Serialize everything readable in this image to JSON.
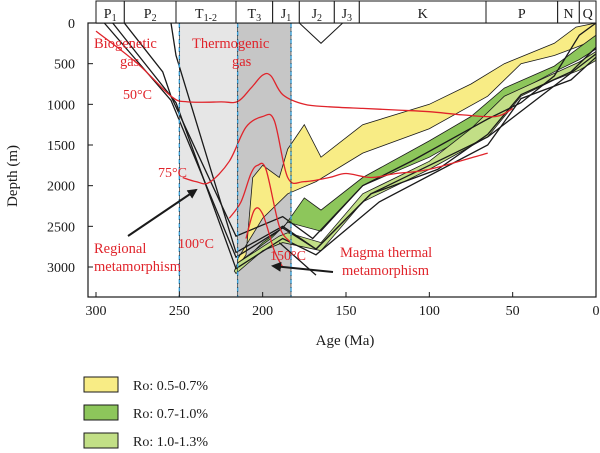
{
  "chart_data": {
    "type": "burial-history",
    "xlabel": "Age (Ma)",
    "ylabel": "Depth (m)",
    "x_ticks": [
      300,
      250,
      200,
      150,
      100,
      50,
      0
    ],
    "y_ticks": [
      0,
      500,
      1000,
      1500,
      2000,
      2500,
      3000
    ],
    "xlim": [
      310,
      0
    ],
    "ylim": [
      0,
      3300
    ],
    "periods": [
      {
        "label": "P",
        "sub": "1",
        "start": 300,
        "end": 283
      },
      {
        "label": "P",
        "sub": "2",
        "start": 283,
        "end": 252
      },
      {
        "label": "T",
        "sub": "1-2",
        "start": 252,
        "end": 216
      },
      {
        "label": "T",
        "sub": "3",
        "start": 216,
        "end": 194
      },
      {
        "label": "J",
        "sub": "1",
        "start": 194,
        "end": 178
      },
      {
        "label": "J",
        "sub": "2",
        "start": 178,
        "end": 157
      },
      {
        "label": "J",
        "sub": "3",
        "start": 157,
        "end": 142
      },
      {
        "label": "K",
        "sub": "",
        "start": 142,
        "end": 66
      },
      {
        "label": "P",
        "sub": "",
        "start": 66,
        "end": 23
      },
      {
        "label": "N",
        "sub": "",
        "start": 23,
        "end": 10
      },
      {
        "label": "Q",
        "sub": "",
        "start": 10,
        "end": 0
      }
    ],
    "bands": [
      {
        "start": 250,
        "end": 215,
        "color": "#e6e6e6"
      },
      {
        "start": 215,
        "end": 183,
        "color": "#c6c6c6"
      }
    ],
    "markers": [
      250,
      215,
      183
    ],
    "burial_curves": [
      [
        [
          300,
          0
        ],
        [
          283,
          0
        ],
        [
          260,
          600
        ],
        [
          255,
          900
        ],
        [
          216,
          2620
        ],
        [
          188,
          2380
        ],
        [
          170,
          2650
        ],
        [
          140,
          2000
        ],
        [
          110,
          1690
        ],
        [
          65,
          1180
        ],
        [
          45,
          980
        ],
        [
          25,
          650
        ],
        [
          10,
          150
        ],
        [
          0,
          0
        ]
      ],
      [
        [
          295,
          0
        ],
        [
          255,
          950
        ],
        [
          216,
          2880
        ],
        [
          188,
          2520
        ],
        [
          168,
          2780
        ],
        [
          135,
          2100
        ],
        [
          95,
          1800
        ],
        [
          65,
          1370
        ],
        [
          45,
          880
        ],
        [
          15,
          600
        ],
        [
          0,
          300
        ]
      ],
      [
        [
          290,
          0
        ],
        [
          252,
          980
        ],
        [
          216,
          3020
        ],
        [
          188,
          2650
        ],
        [
          168,
          2850
        ],
        [
          130,
          2200
        ],
        [
          65,
          1500
        ],
        [
          45,
          930
        ],
        [
          15,
          700
        ],
        [
          0,
          420
        ]
      ],
      [
        [
          255,
          0
        ],
        [
          252,
          400
        ],
        [
          216,
          2820
        ],
        [
          188,
          2500
        ],
        [
          168,
          2780
        ],
        [
          135,
          2100
        ],
        [
          65,
          1400
        ],
        [
          0,
          380
        ]
      ],
      [
        [
          168,
          3100
        ],
        [
          190,
          2700
        ]
      ]
    ],
    "maturity_zones": [
      {
        "label": "Ro: 0.5-0.7%",
        "color": "#f8ec85",
        "outline": [
          [
            215,
            3000
          ],
          [
            210,
            2850
          ],
          [
            206,
            1900
          ],
          [
            200,
            1750
          ],
          [
            190,
            1900
          ],
          [
            185,
            1550
          ],
          [
            180,
            1400
          ],
          [
            175,
            1250
          ],
          [
            165,
            1650
          ],
          [
            140,
            1250
          ],
          [
            100,
            1000
          ],
          [
            75,
            750
          ],
          [
            55,
            500
          ],
          [
            25,
            250
          ],
          [
            12,
            50
          ],
          [
            0,
            0
          ],
          [
            0,
            200
          ],
          [
            12,
            300
          ],
          [
            25,
            400
          ],
          [
            45,
            500
          ],
          [
            65,
            900
          ],
          [
            100,
            1300
          ],
          [
            140,
            1600
          ],
          [
            168,
            1950
          ],
          [
            185,
            2100
          ],
          [
            200,
            2400
          ],
          [
            215,
            2900
          ]
        ]
      },
      {
        "label": "Ro: 0.7-1.0%",
        "color": "#8dc65b",
        "outline": [
          [
            215,
            3000
          ],
          [
            210,
            2900
          ],
          [
            200,
            2700
          ],
          [
            190,
            2550
          ],
          [
            187,
            2500
          ],
          [
            175,
            2150
          ],
          [
            165,
            2300
          ],
          [
            140,
            1900
          ],
          [
            100,
            1450
          ],
          [
            75,
            1150
          ],
          [
            55,
            800
          ],
          [
            25,
            530
          ],
          [
            10,
            300
          ],
          [
            0,
            150
          ],
          [
            0,
            320
          ],
          [
            10,
            450
          ],
          [
            25,
            600
          ],
          [
            45,
            820
          ],
          [
            65,
            1250
          ],
          [
            100,
            1650
          ],
          [
            140,
            2000
          ],
          [
            165,
            2560
          ],
          [
            185,
            2450
          ],
          [
            195,
            2650
          ],
          [
            215,
            2950
          ]
        ]
      },
      {
        "label": "Ro: 1.0-1.3%",
        "color": "#c2df86",
        "outline": [
          [
            217,
            3050
          ],
          [
            215,
            2950
          ],
          [
            200,
            2750
          ],
          [
            190,
            2620
          ],
          [
            185,
            2580
          ],
          [
            165,
            2700
          ],
          [
            140,
            2100
          ],
          [
            100,
            1700
          ],
          [
            75,
            1300
          ],
          [
            55,
            900
          ],
          [
            25,
            620
          ],
          [
            10,
            480
          ],
          [
            0,
            350
          ],
          [
            0,
            460
          ],
          [
            10,
            580
          ],
          [
            25,
            700
          ],
          [
            45,
            900
          ],
          [
            65,
            1400
          ],
          [
            100,
            1800
          ],
          [
            140,
            2200
          ],
          [
            165,
            2800
          ],
          [
            188,
            2700
          ],
          [
            200,
            2800
          ],
          [
            216,
            3080
          ]
        ]
      }
    ],
    "isotherms": [
      {
        "label": "50°C",
        "points": [
          [
            300,
            100
          ],
          [
            275,
            500
          ],
          [
            255,
            900
          ],
          [
            245,
            970
          ],
          [
            225,
            970
          ],
          [
            215,
            965
          ],
          [
            207,
            800
          ],
          [
            200,
            640
          ],
          [
            195,
            650
          ],
          [
            188,
            880
          ],
          [
            175,
            1000
          ],
          [
            160,
            1030
          ],
          [
            140,
            1050
          ],
          [
            120,
            1070
          ],
          [
            100,
            1090
          ],
          [
            80,
            1130
          ],
          [
            60,
            1150
          ],
          [
            50,
            1050
          ]
        ]
      },
      {
        "label": "75°C",
        "points": [
          [
            248,
            1900
          ],
          [
            240,
            1950
          ],
          [
            232,
            1960
          ],
          [
            220,
            1700
          ],
          [
            210,
            1280
          ],
          [
            200,
            1150
          ],
          [
            193,
            1200
          ],
          [
            185,
            1900
          ],
          [
            175,
            1950
          ],
          [
            160,
            1900
          ],
          [
            150,
            1850
          ],
          [
            135,
            1900
          ],
          [
            120,
            1850
          ],
          [
            100,
            1800
          ],
          [
            65,
            1600
          ]
        ]
      },
      {
        "label": "100°C",
        "points": [
          [
            220,
            2400
          ],
          [
            213,
            2200
          ],
          [
            207,
            1850
          ],
          [
            203,
            1750
          ],
          [
            198,
            1800
          ],
          [
            190,
            2500
          ],
          [
            183,
            2700
          ]
        ]
      },
      {
        "label": "150°C",
        "points": [
          [
            210,
            2650
          ],
          [
            205,
            2300
          ],
          [
            200,
            2350
          ],
          [
            193,
            2800
          ],
          [
            188,
            3000
          ]
        ]
      }
    ],
    "annotations": {
      "biogenetic": "Biogenetic gas",
      "thermogenic": "Thermogenic gas",
      "c50": "50°C",
      "c75": "75°C",
      "c100": "100°C",
      "c150": "150°C",
      "regional": "Regional metamorphism",
      "magma": "Magma thermal metamorphism"
    },
    "legend": [
      {
        "label": "Ro: 0.5-0.7%",
        "color": "#f8ec85"
      },
      {
        "label": "Ro: 0.7-1.0%",
        "color": "#8dc65b"
      },
      {
        "label": "Ro: 1.0-1.3%",
        "color": "#c2df86"
      }
    ],
    "colors": {
      "isotherm": "#e0242b",
      "burial": "#1a1a1a",
      "marker": "#3aa0d8",
      "arrow": "#1a1a1a"
    }
  }
}
